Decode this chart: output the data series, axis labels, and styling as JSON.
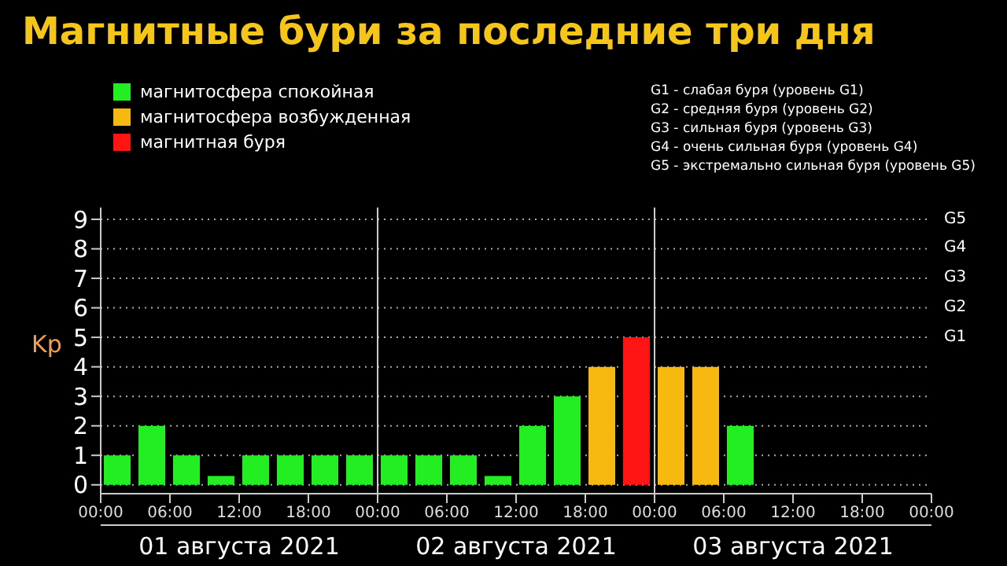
{
  "chart_data": {
    "type": "bar",
    "title": "Магнитные бури за последние три дня",
    "ylabel": "Kp",
    "stacked": true,
    "x": [
      "2021-08-01T01:30",
      "2021-08-01T04:30",
      "2021-08-01T07:30",
      "2021-08-01T10:30",
      "2021-08-01T13:30",
      "2021-08-01T16:30",
      "2021-08-01T19:30",
      "2021-08-01T22:30",
      "2021-08-02T01:30",
      "2021-08-02T04:30",
      "2021-08-02T07:30",
      "2021-08-02T10:30",
      "2021-08-02T13:30",
      "2021-08-02T16:30",
      "2021-08-02T19:30",
      "2021-08-02T22:30",
      "2021-08-03T01:30",
      "2021-08-03T04:30",
      "2021-08-03T07:30"
    ],
    "series": [
      {
        "name": "магнитосфера спокойная",
        "color": "#22ee22",
        "values": [
          1,
          2,
          1,
          0.3,
          1,
          1,
          1,
          1,
          1,
          1,
          1,
          0.3,
          2,
          3,
          null,
          null,
          null,
          null,
          2
        ]
      },
      {
        "name": "магнитосфера возбужденная",
        "color": "#f7b90f",
        "values": [
          null,
          null,
          null,
          null,
          null,
          null,
          null,
          null,
          null,
          null,
          null,
          null,
          null,
          null,
          4,
          null,
          4,
          4,
          null
        ]
      },
      {
        "name": "магнитная буря",
        "color": "#ff1414",
        "values": [
          null,
          null,
          null,
          null,
          null,
          null,
          null,
          null,
          null,
          null,
          null,
          null,
          null,
          null,
          null,
          5,
          null,
          null,
          null
        ]
      }
    ],
    "xlim": [
      "2021-08-01T00:00",
      "2021-08-04T00:00"
    ],
    "xticks": [
      {
        "value": "2021-08-01T00:00",
        "label": "00:00"
      },
      {
        "value": "2021-08-01T06:00",
        "label": "06:00"
      },
      {
        "value": "2021-08-01T12:00",
        "label": "12:00"
      },
      {
        "value": "2021-08-01T18:00",
        "label": "18:00"
      },
      {
        "value": "2021-08-02T00:00",
        "label": "00:00"
      },
      {
        "value": "2021-08-02T06:00",
        "label": "06:00"
      },
      {
        "value": "2021-08-02T12:00",
        "label": "12:00"
      },
      {
        "value": "2021-08-02T18:00",
        "label": "18:00"
      },
      {
        "value": "2021-08-03T00:00",
        "label": "00:00"
      },
      {
        "value": "2021-08-03T06:00",
        "label": "06:00"
      },
      {
        "value": "2021-08-03T12:00",
        "label": "12:00"
      },
      {
        "value": "2021-08-03T18:00",
        "label": "18:00"
      },
      {
        "value": "2021-08-04T00:00",
        "label": "00:00"
      }
    ],
    "x2lim": [
      "2021-08-01T00:00",
      "2021-08-04T00:00"
    ],
    "x2ticks": [
      {
        "value": "2021-08-01T12:00",
        "label": "01 августа 2021"
      },
      {
        "value": "2021-08-02T12:00",
        "label": "02 августа 2021"
      },
      {
        "value": "2021-08-03T12:00",
        "label": "03 августа 2021"
      }
    ],
    "ylim": [
      -0.3,
      9.4
    ],
    "yticks": [
      0,
      1,
      2,
      3,
      4,
      5,
      6,
      7,
      8,
      9
    ],
    "ref_lines": [
      {
        "axis": "x",
        "value": "2021-08-02T00:00",
        "color": "#cccccc"
      },
      {
        "axis": "x",
        "value": "2021-08-03T00:00",
        "color": "#cccccc"
      }
    ],
    "grid": "y",
    "legend": "top left",
    "annotations": [
      "G1 - слабая буря (уровень G1)",
      "G2 - средняя буря (уровень G2)",
      "G3 - сильная буря (уровень G3)",
      "G4 - очень сильная буря (уровень G4)",
      "G5 - экстремально сильная буря (уровень G5)",
      "G5",
      "G4",
      "G3",
      "G2",
      "G1"
    ]
  }
}
